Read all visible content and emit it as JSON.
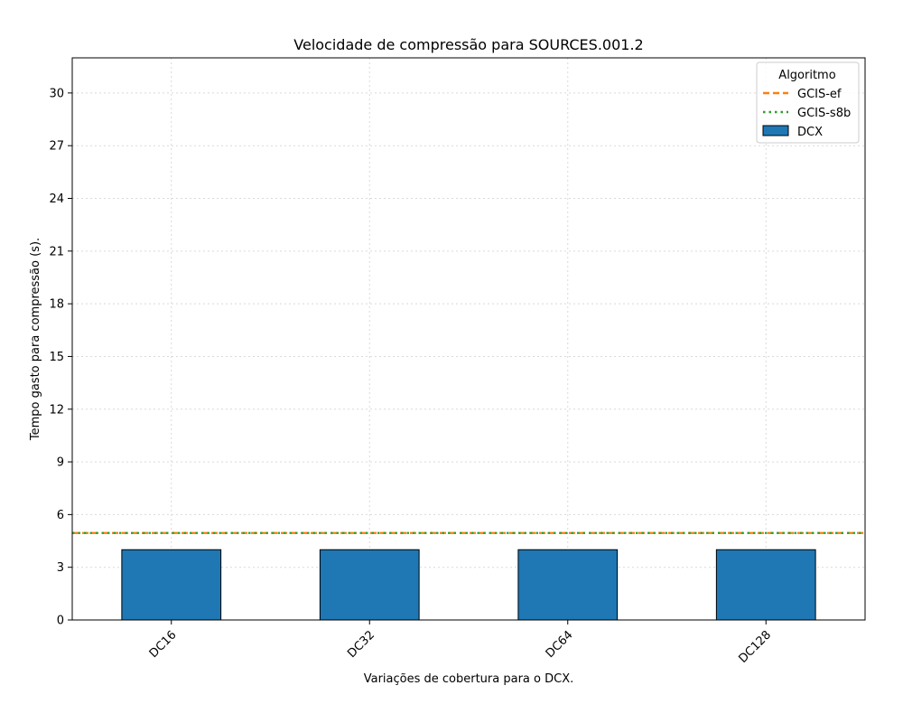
{
  "chart_data": {
    "type": "bar",
    "title": "Velocidade de compressão para  SOURCES.001.2",
    "xlabel": "Variações de cobertura para o DCX.",
    "ylabel": "Tempo gasto para compressão (s).",
    "categories": [
      "DC16",
      "DC32",
      "DC64",
      "DC128"
    ],
    "series": [
      {
        "name": "DCX",
        "values": [
          4.0,
          4.0,
          4.0,
          4.0
        ],
        "color": "#1f77b4"
      }
    ],
    "reference_lines": [
      {
        "name": "GCIS-ef",
        "value": 4.95,
        "color": "#ff7f0e",
        "style": "dashed"
      },
      {
        "name": "GCIS-s8b",
        "value": 4.95,
        "color": "#2ca02c",
        "style": "dotted"
      }
    ],
    "ylim": [
      0,
      32
    ],
    "yticks": [
      "0",
      "3",
      "6",
      "9",
      "12",
      "15",
      "18",
      "21",
      "24",
      "27",
      "30"
    ],
    "grid": true,
    "legend": {
      "title": "Algoritmo",
      "position": "top-right"
    }
  }
}
